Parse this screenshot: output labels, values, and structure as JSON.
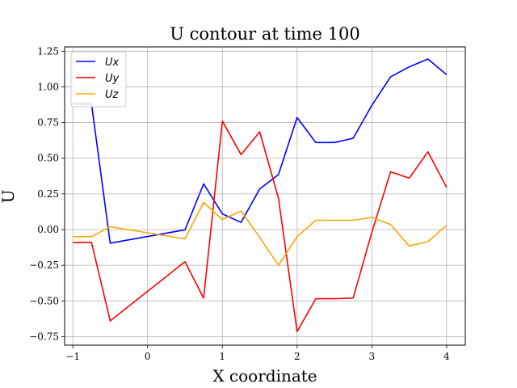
{
  "chart_data": {
    "type": "line",
    "title": "U contour at time 100",
    "xlabel": "X coordinate",
    "ylabel": "U",
    "xlim": [
      -1.11,
      4.25
    ],
    "ylim": [
      -0.81,
      1.28
    ],
    "xticks": [
      -1,
      0,
      1,
      2,
      3,
      4
    ],
    "xtick_labels": [
      "−1",
      "0",
      "1",
      "2",
      "3",
      "4"
    ],
    "yticks": [
      -0.75,
      -0.5,
      -0.25,
      0.0,
      0.25,
      0.5,
      0.75,
      1.0,
      1.25
    ],
    "ytick_labels": [
      "−0.75",
      "−0.50",
      "−0.25",
      "0.00",
      "0.25",
      "0.50",
      "0.75",
      "1.00",
      "1.25"
    ],
    "grid": true,
    "legend_position": "upper-left",
    "series": [
      {
        "name": "Ux",
        "color": "#0000ff",
        "x": [
          -1.0,
          -0.75,
          -0.5,
          0.5,
          0.75,
          1.0,
          1.25,
          1.5,
          1.75,
          2.0,
          2.25,
          2.5,
          2.75,
          3.0,
          3.25,
          3.5,
          3.75,
          4.0
        ],
        "y": [
          0.88,
          0.88,
          -0.095,
          -0.002,
          0.32,
          0.11,
          0.05,
          0.285,
          0.385,
          0.785,
          0.61,
          0.61,
          0.64,
          0.87,
          1.07,
          1.14,
          1.195,
          1.085
        ]
      },
      {
        "name": "Uy",
        "color": "#ff0000",
        "x": [
          -1.0,
          -0.75,
          -0.5,
          0.5,
          0.75,
          1.0,
          1.25,
          1.5,
          1.75,
          2.0,
          2.25,
          2.5,
          2.75,
          3.0,
          3.25,
          3.5,
          3.75,
          4.0
        ],
        "y": [
          -0.09,
          -0.09,
          -0.64,
          -0.225,
          -0.48,
          0.76,
          0.525,
          0.685,
          0.22,
          -0.715,
          -0.485,
          -0.485,
          -0.48,
          -0.02,
          0.405,
          0.36,
          0.545,
          0.295
        ]
      },
      {
        "name": "Uz",
        "color": "#ffa500",
        "x": [
          -1.0,
          -0.75,
          -0.5,
          0.5,
          0.75,
          1.0,
          1.25,
          1.5,
          1.75,
          2.0,
          2.25,
          2.5,
          2.75,
          3.0,
          3.25,
          3.5,
          3.75,
          4.0
        ],
        "y": [
          -0.05,
          -0.05,
          0.02,
          -0.065,
          0.19,
          0.07,
          0.13,
          -0.055,
          -0.25,
          -0.05,
          0.065,
          0.065,
          0.065,
          0.085,
          0.035,
          -0.115,
          -0.085,
          0.03
        ]
      }
    ]
  }
}
